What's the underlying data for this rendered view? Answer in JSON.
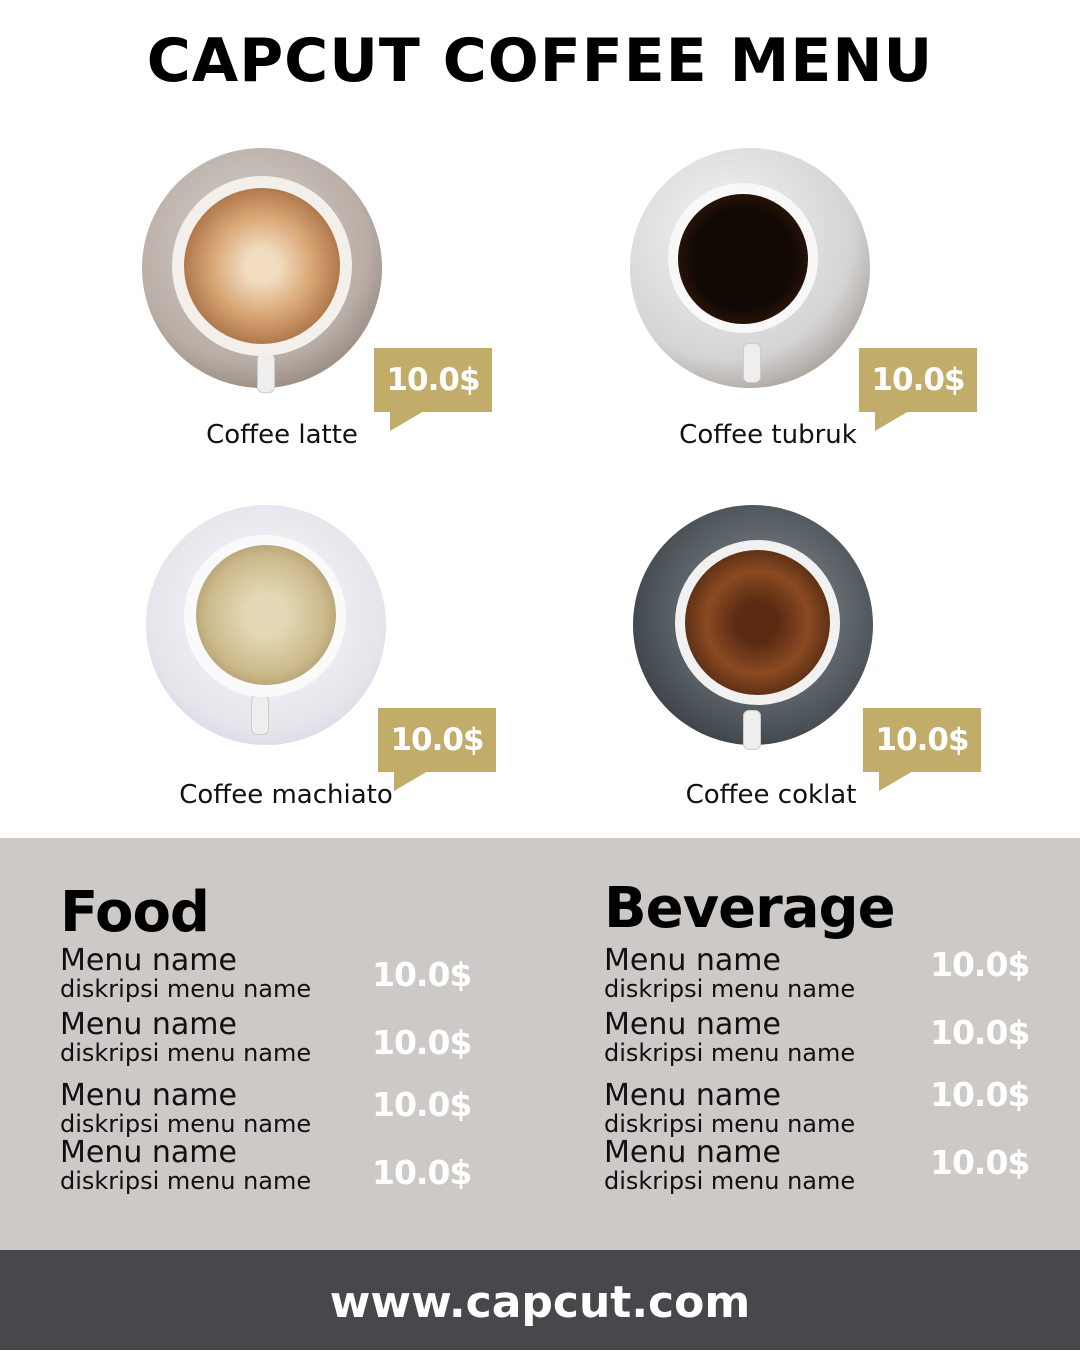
{
  "title": "CAPCUT COFFEE MENU",
  "colors": {
    "accent": "#c1ac6a",
    "panel": "#cdc9c6",
    "footer": "#48474c"
  },
  "coffees": [
    {
      "name": "Coffee latte",
      "price": "10.0$"
    },
    {
      "name": "Coffee tubruk",
      "price": "10.0$"
    },
    {
      "name": "Coffee machiato",
      "price": "10.0$"
    },
    {
      "name": "Coffee coklat",
      "price": "10.0$"
    }
  ],
  "food": {
    "heading": "Food",
    "items": [
      {
        "name": "Menu name",
        "desc": "diskripsi menu name",
        "price": "10.0$"
      },
      {
        "name": "Menu name",
        "desc": "diskripsi menu name",
        "price": "10.0$"
      },
      {
        "name": "Menu name",
        "desc": "diskripsi menu name",
        "price": "10.0$"
      },
      {
        "name": "Menu name",
        "desc": "diskripsi menu name",
        "price": "10.0$"
      }
    ]
  },
  "beverage": {
    "heading": "Beverage",
    "items": [
      {
        "name": "Menu name",
        "desc": "diskripsi menu name",
        "price": "10.0$"
      },
      {
        "name": "Menu name",
        "desc": "diskripsi menu name",
        "price": "10.0$"
      },
      {
        "name": "Menu name",
        "desc": "diskripsi menu name",
        "price": "10.0$"
      },
      {
        "name": "Menu name",
        "desc": "diskripsi menu name",
        "price": "10.0$"
      }
    ]
  },
  "footer": "www.capcut.com"
}
